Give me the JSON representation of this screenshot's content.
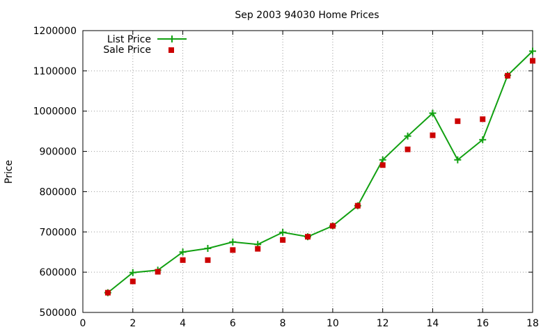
{
  "chart_data": {
    "type": "line",
    "title": "Sep 2003 94030 Home Prices",
    "xlabel": "",
    "ylabel": "Price",
    "xlim": [
      0,
      18
    ],
    "ylim": [
      500000,
      1200000
    ],
    "xticks": [
      0,
      2,
      4,
      6,
      8,
      10,
      12,
      14,
      16,
      18
    ],
    "yticks": [
      500000,
      600000,
      700000,
      800000,
      900000,
      1000000,
      1100000,
      1200000
    ],
    "grid": true,
    "legend_position": "top-left",
    "series": [
      {
        "name": "List Price",
        "style": "line-with-plus-markers",
        "color": "#11a011",
        "x": [
          1,
          2,
          3,
          4,
          5,
          6,
          7,
          8,
          9,
          10,
          11,
          12,
          13,
          14,
          15,
          16,
          17,
          18
        ],
        "values": [
          549000,
          599000,
          605000,
          650000,
          659000,
          675000,
          669000,
          699000,
          688000,
          715000,
          765000,
          879000,
          938000,
          995000,
          879000,
          929000,
          1089000,
          1149000
        ]
      },
      {
        "name": "Sale Price",
        "style": "square-markers",
        "color": "#cc0000",
        "x": [
          1,
          2,
          3,
          4,
          5,
          6,
          7,
          8,
          9,
          10,
          11,
          12,
          13,
          14,
          15,
          16,
          17,
          18
        ],
        "values": [
          549000,
          577000,
          601000,
          630000,
          630000,
          655000,
          658000,
          680000,
          688000,
          715000,
          765000,
          866000,
          905000,
          940000,
          975000,
          980000,
          1088000,
          1125000
        ]
      }
    ]
  }
}
